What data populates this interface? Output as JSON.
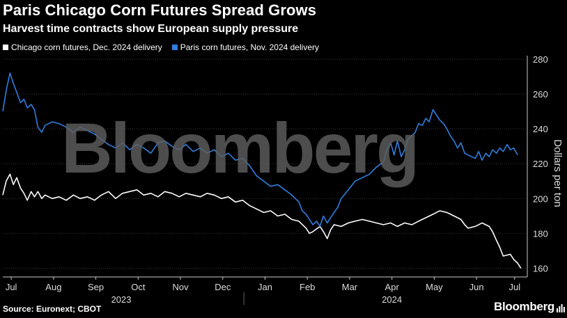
{
  "title": "Paris Chicago Corn Futures Spread Grows",
  "subtitle": "Harvest time contracts show European supply pressure",
  "source": "Source: Euronext; CBOT",
  "brand": "Bloomberg",
  "watermark": "Bloomberg",
  "colors": {
    "background": "#000000",
    "chicago": "#ffffff",
    "paris": "#2f7fe0",
    "grid": "#3a3a3a",
    "axis": "#cccccc"
  },
  "chart_data": {
    "type": "line",
    "ylabel": "Dollars per ton",
    "ylim": [
      155,
      282
    ],
    "yticks": [
      160,
      180,
      200,
      220,
      240,
      260,
      280
    ],
    "xlim": [
      0,
      12.4
    ],
    "xticks": [
      {
        "label": "Jul",
        "x": 0.2
      },
      {
        "label": "Aug",
        "x": 1.2
      },
      {
        "label": "Sep",
        "x": 2.2
      },
      {
        "label": "Oct",
        "x": 3.2
      },
      {
        "label": "Nov",
        "x": 4.2
      },
      {
        "label": "Dec",
        "x": 5.2
      },
      {
        "label": "Jan",
        "x": 6.2
      },
      {
        "label": "Feb",
        "x": 7.2
      },
      {
        "label": "Mar",
        "x": 8.2
      },
      {
        "label": "Apr",
        "x": 9.2
      },
      {
        "label": "May",
        "x": 10.2
      },
      {
        "label": "Jun",
        "x": 11.2
      },
      {
        "label": "Jul",
        "x": 12.1
      }
    ],
    "years": [
      {
        "label": "2023",
        "x": 2.8
      },
      {
        "label": "2024",
        "x": 9.2
      }
    ],
    "year_divider_x": 5.7,
    "series": [
      {
        "name": "Chicago corn futures, Dec. 2024 delivery",
        "color": "#ffffff",
        "points": [
          [
            0,
            202
          ],
          [
            0.08,
            210
          ],
          [
            0.17,
            214
          ],
          [
            0.25,
            208
          ],
          [
            0.33,
            212
          ],
          [
            0.42,
            206
          ],
          [
            0.5,
            203
          ],
          [
            0.58,
            199
          ],
          [
            0.67,
            204
          ],
          [
            0.75,
            201
          ],
          [
            0.83,
            204
          ],
          [
            0.92,
            200
          ],
          [
            1.0,
            202
          ],
          [
            1.17,
            200
          ],
          [
            1.33,
            201
          ],
          [
            1.5,
            199
          ],
          [
            1.67,
            202
          ],
          [
            1.83,
            200
          ],
          [
            2.0,
            201
          ],
          [
            2.17,
            199
          ],
          [
            2.33,
            202
          ],
          [
            2.5,
            204
          ],
          [
            2.67,
            200
          ],
          [
            2.83,
            203
          ],
          [
            3.0,
            204
          ],
          [
            3.17,
            205
          ],
          [
            3.33,
            202
          ],
          [
            3.5,
            203
          ],
          [
            3.67,
            201
          ],
          [
            3.83,
            204
          ],
          [
            4.0,
            203
          ],
          [
            4.17,
            201
          ],
          [
            4.33,
            203
          ],
          [
            4.5,
            202
          ],
          [
            4.67,
            201
          ],
          [
            4.83,
            203
          ],
          [
            5.0,
            202
          ],
          [
            5.17,
            200
          ],
          [
            5.33,
            201
          ],
          [
            5.5,
            198
          ],
          [
            5.67,
            199
          ],
          [
            5.83,
            196
          ],
          [
            6.0,
            194
          ],
          [
            6.17,
            192
          ],
          [
            6.33,
            193
          ],
          [
            6.5,
            190
          ],
          [
            6.67,
            191
          ],
          [
            6.83,
            188
          ],
          [
            7.0,
            187
          ],
          [
            7.17,
            183
          ],
          [
            7.25,
            180
          ],
          [
            7.33,
            181
          ],
          [
            7.5,
            184
          ],
          [
            7.58,
            181
          ],
          [
            7.67,
            177
          ],
          [
            7.75,
            182
          ],
          [
            7.83,
            185
          ],
          [
            8.0,
            184
          ],
          [
            8.17,
            186
          ],
          [
            8.33,
            187
          ],
          [
            8.5,
            188
          ],
          [
            8.67,
            187
          ],
          [
            8.83,
            186
          ],
          [
            9.0,
            185
          ],
          [
            9.17,
            186
          ],
          [
            9.33,
            184
          ],
          [
            9.5,
            186
          ],
          [
            9.67,
            185
          ],
          [
            9.83,
            187
          ],
          [
            10.0,
            189
          ],
          [
            10.17,
            191
          ],
          [
            10.33,
            193
          ],
          [
            10.5,
            192
          ],
          [
            10.67,
            190
          ],
          [
            10.83,
            188
          ],
          [
            10.92,
            185
          ],
          [
            11.0,
            183
          ],
          [
            11.17,
            184
          ],
          [
            11.33,
            186
          ],
          [
            11.5,
            184
          ],
          [
            11.58,
            181
          ],
          [
            11.67,
            176
          ],
          [
            11.75,
            172
          ],
          [
            11.83,
            167
          ],
          [
            12.0,
            168
          ],
          [
            12.08,
            165
          ],
          [
            12.17,
            163
          ],
          [
            12.25,
            160
          ]
        ]
      },
      {
        "name": "Paris corn futures, Nov. 2024 delivery",
        "color": "#2f7fe0",
        "points": [
          [
            0,
            250
          ],
          [
            0.08,
            262
          ],
          [
            0.17,
            272
          ],
          [
            0.25,
            266
          ],
          [
            0.33,
            261
          ],
          [
            0.42,
            255
          ],
          [
            0.5,
            257
          ],
          [
            0.58,
            252
          ],
          [
            0.67,
            254
          ],
          [
            0.75,
            251
          ],
          [
            0.83,
            241
          ],
          [
            0.92,
            238
          ],
          [
            1.0,
            242
          ],
          [
            1.17,
            244
          ],
          [
            1.33,
            243
          ],
          [
            1.5,
            241
          ],
          [
            1.67,
            238
          ],
          [
            1.83,
            241
          ],
          [
            2.0,
            239
          ],
          [
            2.17,
            237
          ],
          [
            2.33,
            234
          ],
          [
            2.5,
            231
          ],
          [
            2.67,
            229
          ],
          [
            2.83,
            232
          ],
          [
            3.0,
            228
          ],
          [
            3.17,
            231
          ],
          [
            3.33,
            229
          ],
          [
            3.5,
            226
          ],
          [
            3.67,
            232
          ],
          [
            3.83,
            233
          ],
          [
            4.0,
            230
          ],
          [
            4.17,
            228
          ],
          [
            4.33,
            231
          ],
          [
            4.5,
            227
          ],
          [
            4.67,
            229
          ],
          [
            4.83,
            226
          ],
          [
            5.0,
            228
          ],
          [
            5.17,
            224
          ],
          [
            5.33,
            226
          ],
          [
            5.5,
            222
          ],
          [
            5.67,
            223
          ],
          [
            5.83,
            219
          ],
          [
            6.0,
            213
          ],
          [
            6.17,
            210
          ],
          [
            6.33,
            207
          ],
          [
            6.5,
            208
          ],
          [
            6.67,
            205
          ],
          [
            6.83,
            202
          ],
          [
            7.0,
            198
          ],
          [
            7.08,
            193
          ],
          [
            7.17,
            191
          ],
          [
            7.25,
            188
          ],
          [
            7.33,
            185
          ],
          [
            7.42,
            187
          ],
          [
            7.5,
            184
          ],
          [
            7.58,
            190
          ],
          [
            7.67,
            186
          ],
          [
            7.75,
            189
          ],
          [
            7.83,
            192
          ],
          [
            7.92,
            195
          ],
          [
            8.0,
            200
          ],
          [
            8.17,
            205
          ],
          [
            8.33,
            210
          ],
          [
            8.5,
            212
          ],
          [
            8.67,
            214
          ],
          [
            8.83,
            218
          ],
          [
            9.0,
            221
          ],
          [
            9.08,
            228
          ],
          [
            9.17,
            232
          ],
          [
            9.25,
            225
          ],
          [
            9.33,
            233
          ],
          [
            9.42,
            224
          ],
          [
            9.5,
            228
          ],
          [
            9.58,
            234
          ],
          [
            9.67,
            236
          ],
          [
            9.75,
            238
          ],
          [
            9.83,
            243
          ],
          [
            9.92,
            242
          ],
          [
            10.0,
            246
          ],
          [
            10.08,
            244
          ],
          [
            10.17,
            251
          ],
          [
            10.25,
            248
          ],
          [
            10.33,
            245
          ],
          [
            10.42,
            243
          ],
          [
            10.5,
            240
          ],
          [
            10.58,
            236
          ],
          [
            10.67,
            233
          ],
          [
            10.75,
            229
          ],
          [
            10.83,
            232
          ],
          [
            10.92,
            226
          ],
          [
            11.0,
            225
          ],
          [
            11.17,
            223
          ],
          [
            11.25,
            227
          ],
          [
            11.33,
            222
          ],
          [
            11.42,
            226
          ],
          [
            11.5,
            224
          ],
          [
            11.58,
            228
          ],
          [
            11.67,
            226
          ],
          [
            11.75,
            229
          ],
          [
            11.83,
            227
          ],
          [
            11.92,
            231
          ],
          [
            12.0,
            228
          ],
          [
            12.08,
            229
          ],
          [
            12.17,
            225
          ]
        ]
      }
    ]
  }
}
